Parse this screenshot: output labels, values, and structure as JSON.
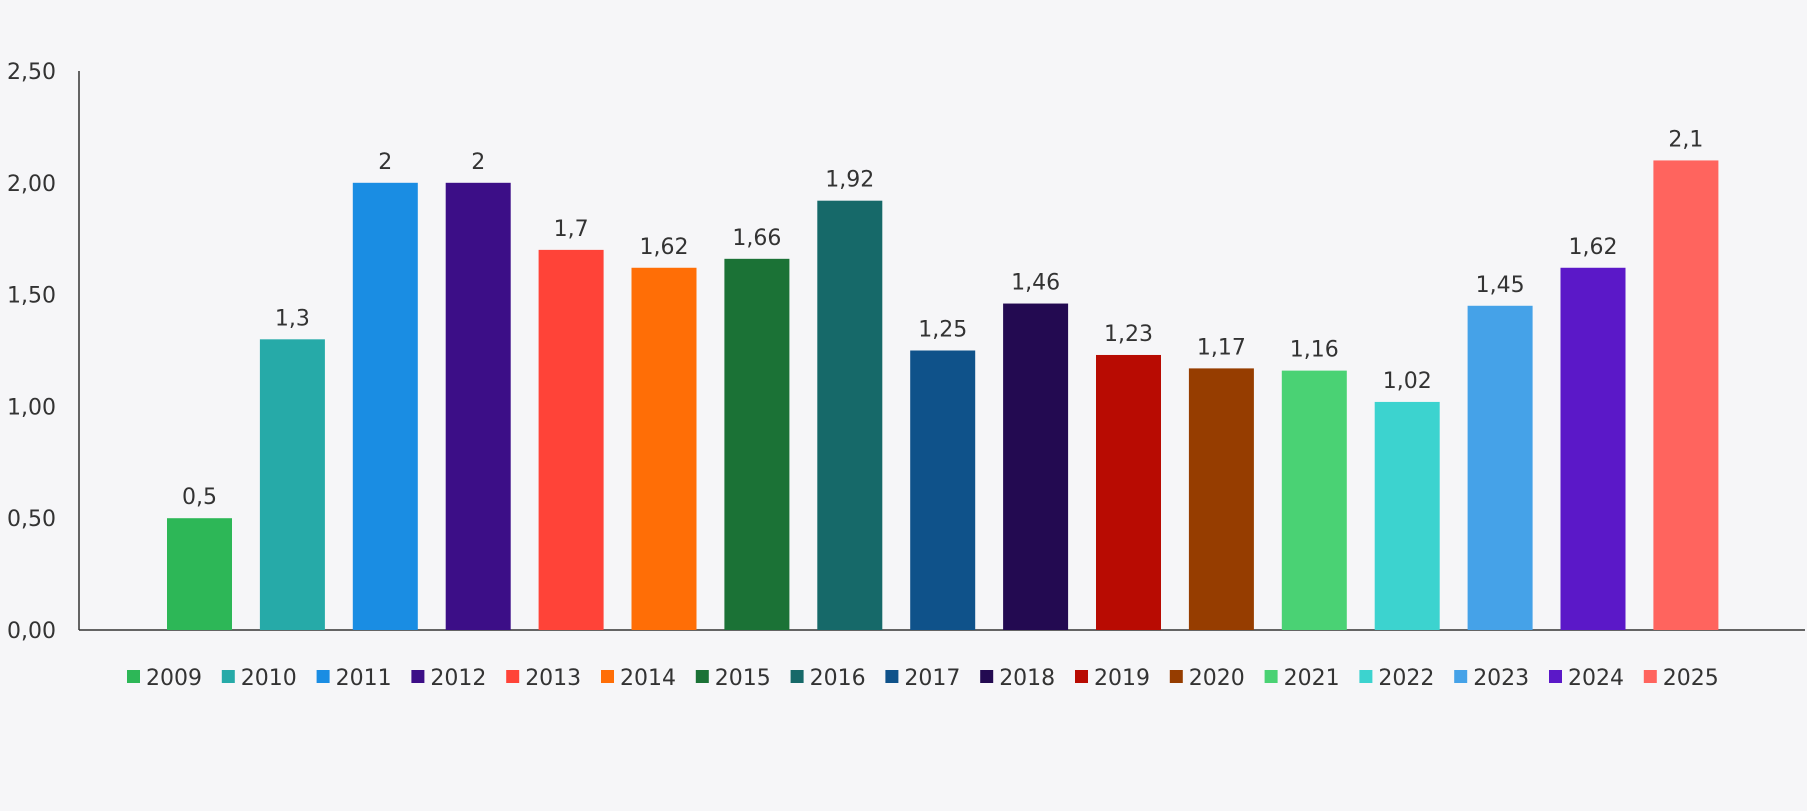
{
  "chart_data": {
    "type": "bar",
    "title": "",
    "xlabel": "",
    "ylabel": "",
    "ylim": [
      0,
      2.5
    ],
    "y_ticks": [
      0,
      0.5,
      1.0,
      1.5,
      2.0,
      2.5
    ],
    "y_tick_labels": [
      "0,00",
      "0,50",
      "1,00",
      "1,50",
      "2,00",
      "2,50"
    ],
    "grid": false,
    "legend_position": "bottom",
    "series": [
      {
        "name": "2009",
        "value": 0.5,
        "label": "0,5",
        "color": "#2db757"
      },
      {
        "name": "2010",
        "value": 1.3,
        "label": "1,3",
        "color": "#26aaa8"
      },
      {
        "name": "2011",
        "value": 2.0,
        "label": "2",
        "color": "#1a8de3"
      },
      {
        "name": "2012",
        "value": 2.0,
        "label": "2",
        "color": "#3c0e87"
      },
      {
        "name": "2013",
        "value": 1.7,
        "label": "1,7",
        "color": "#ff4338"
      },
      {
        "name": "2014",
        "value": 1.62,
        "label": "1,62",
        "color": "#ff6e06"
      },
      {
        "name": "2015",
        "value": 1.66,
        "label": "1,66",
        "color": "#1b7236"
      },
      {
        "name": "2016",
        "value": 1.92,
        "label": "1,92",
        "color": "#166969"
      },
      {
        "name": "2017",
        "value": 1.25,
        "label": "1,25",
        "color": "#0f528a"
      },
      {
        "name": "2018",
        "value": 1.46,
        "label": "1,46",
        "color": "#230a51"
      },
      {
        "name": "2019",
        "value": 1.23,
        "label": "1,23",
        "color": "#b80b02"
      },
      {
        "name": "2020",
        "value": 1.17,
        "label": "1,17",
        "color": "#963d00"
      },
      {
        "name": "2021",
        "value": 1.16,
        "label": "1,16",
        "color": "#4ad274"
      },
      {
        "name": "2022",
        "value": 1.02,
        "label": "1,02",
        "color": "#3cd3cf"
      },
      {
        "name": "2023",
        "value": 1.45,
        "label": "1,45",
        "color": "#45a2e8"
      },
      {
        "name": "2024",
        "value": 1.62,
        "label": "1,62",
        "color": "#5b18c8"
      },
      {
        "name": "2025",
        "value": 2.1,
        "label": "2,1",
        "color": "#ff645e"
      }
    ]
  }
}
